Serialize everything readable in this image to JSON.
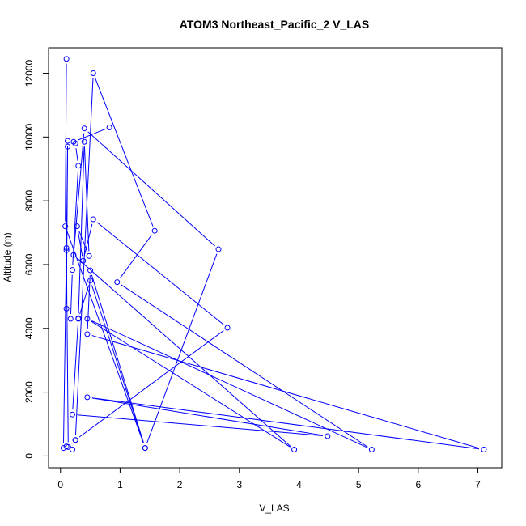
{
  "chart_data": {
    "type": "line",
    "title": "ATOM3 Northeast_Pacific_2 V_LAS",
    "xlabel": "V_LAS",
    "ylabel": "Altitude (m)",
    "xlim": [
      -0.2,
      7.4
    ],
    "ylim": [
      -370,
      12800
    ],
    "x_ticks": [
      0,
      1,
      2,
      3,
      4,
      5,
      6,
      7
    ],
    "y_ticks": [
      0,
      2000,
      4000,
      6000,
      8000,
      10000,
      12000
    ],
    "grid": false,
    "legend": "none",
    "color": "#0000ff",
    "series": [
      {
        "x": [
          0.82,
          0.22,
          0.12,
          0.25,
          0.3,
          0.2,
          0.17,
          0.3,
          0.4,
          0.48,
          0.28,
          0.38,
          0.55,
          2.8,
          0.25,
          0.13,
          0.1,
          0.1,
          0.12,
          0.1,
          0.05,
          0.1,
          0.2,
          0.25,
          0.55,
          1.58,
          0.95,
          5.22,
          0.45,
          3.92,
          0.22,
          0.4,
          2.65,
          1.42,
          0.5,
          0.45,
          7.1,
          0.45,
          4.48,
          0.2,
          0.3,
          0.5,
          1.42,
          0.08,
          0.1
        ],
        "y": [
          10300,
          9850,
          9700,
          9800,
          9100,
          5830,
          4300,
          4320,
          9850,
          6270,
          7200,
          6120,
          7420,
          4020,
          500,
          280,
          6450,
          4620,
          9880,
          6520,
          250,
          300,
          200,
          500,
          12000,
          7060,
          5450,
          200,
          4300,
          200,
          6300,
          10270,
          6480,
          250,
          5820,
          3820,
          200,
          1840,
          620,
          1300,
          4300,
          5500,
          250,
          7200,
          12450
        ]
      }
    ]
  }
}
